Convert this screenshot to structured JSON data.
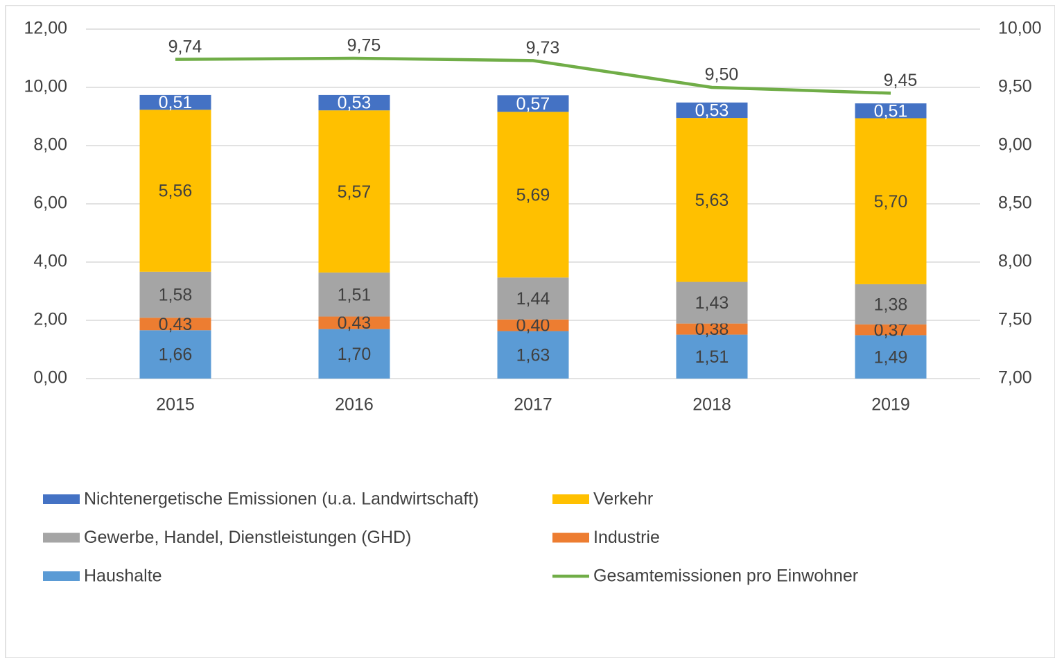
{
  "chart_data": {
    "type": "bar",
    "stacked": true,
    "categories": [
      "2015",
      "2016",
      "2017",
      "2018",
      "2019"
    ],
    "series": [
      {
        "name": "Nichtenergetische Emissionen (u.a. Landwirtschaft)",
        "color": "#4472c4",
        "values": [
          0.51,
          0.53,
          0.57,
          0.53,
          0.51
        ],
        "value_labels": [
          "0,51",
          "0,53",
          "0,57",
          "0,53",
          "0,51"
        ]
      },
      {
        "name": "Verkehr",
        "color": "#ffc000",
        "values": [
          5.56,
          5.57,
          5.69,
          5.63,
          5.7
        ],
        "value_labels": [
          "5,56",
          "5,57",
          "5,69",
          "5,63",
          "5,70"
        ]
      },
      {
        "name": "Gewerbe, Handel, Dienstleistungen (GHD)",
        "color": "#a5a5a5",
        "values": [
          1.58,
          1.51,
          1.44,
          1.43,
          1.38
        ],
        "value_labels": [
          "1,58",
          "1,51",
          "1,44",
          "1,43",
          "1,38"
        ]
      },
      {
        "name": "Industrie",
        "color": "#ed7d31",
        "values": [
          0.43,
          0.43,
          0.4,
          0.38,
          0.37
        ],
        "value_labels": [
          "0,43",
          "0,43",
          "0,40",
          "0,38",
          "0,37"
        ]
      },
      {
        "name": "Haushalte",
        "color": "#5b9bd5",
        "values": [
          1.66,
          1.7,
          1.63,
          1.51,
          1.49
        ],
        "value_labels": [
          "1,66",
          "1,70",
          "1,63",
          "1,51",
          "1,49"
        ]
      },
      {
        "name": "Gesamtemissionen pro Einwohner",
        "color": "#70ad47",
        "type": "line",
        "axis": "y2",
        "values": [
          9.74,
          9.75,
          9.73,
          9.5,
          9.45
        ],
        "value_labels": [
          "9,74",
          "9,75",
          "9,73",
          "9,50",
          "9,45"
        ]
      }
    ],
    "ylim": [
      0,
      12
    ],
    "yticks": [
      {
        "value": 0,
        "label": "0,00"
      },
      {
        "value": 2,
        "label": "2,00"
      },
      {
        "value": 4,
        "label": "4,00"
      },
      {
        "value": 6,
        "label": "6,00"
      },
      {
        "value": 8,
        "label": "8,00"
      },
      {
        "value": 10,
        "label": "10,00"
      },
      {
        "value": 12,
        "label": "12,00"
      }
    ],
    "y2lim": [
      7,
      10
    ],
    "y2ticks": [
      {
        "value": 7,
        "label": "7,00"
      },
      {
        "value": 7.5,
        "label": "7,50"
      },
      {
        "value": 8,
        "label": "8,00"
      },
      {
        "value": 8.5,
        "label": "8,50"
      },
      {
        "value": 9,
        "label": "9,00"
      },
      {
        "value": 9.5,
        "label": "9,50"
      },
      {
        "value": 10,
        "label": "10,00"
      }
    ],
    "grid": true,
    "legend": "bottom"
  }
}
